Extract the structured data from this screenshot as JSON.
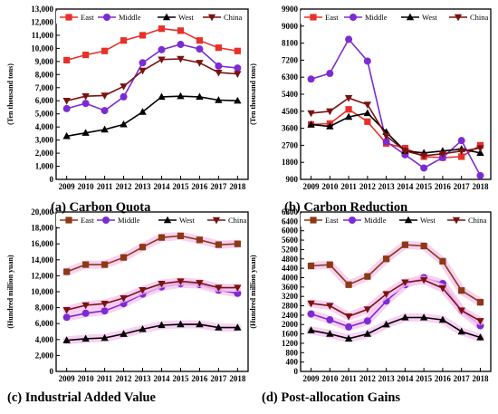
{
  "chart_data": [
    {
      "type": "line",
      "caption": "(a) Carbon Quota",
      "ylabel": "(Ten thousand tons)",
      "xlabel": "",
      "x": [
        "2009",
        "2010",
        "2011",
        "2012",
        "2013",
        "2014",
        "2015",
        "2016",
        "2017",
        "2018"
      ],
      "ylim": [
        0,
        13000
      ],
      "yticks": [
        "0",
        "1,000",
        "2,000",
        "3,000",
        "4,000",
        "5,000",
        "6,000",
        "7,000",
        "8,000",
        "9,000",
        "10,000",
        "11,000",
        "12,000",
        "13,000"
      ],
      "grid": false,
      "legend": "top",
      "series": [
        {
          "name": "East",
          "values": [
            9100,
            9500,
            9800,
            10600,
            11000,
            11500,
            11350,
            10600,
            10050,
            9800
          ]
        },
        {
          "name": "Middle",
          "values": [
            5400,
            5800,
            5250,
            6300,
            8900,
            9900,
            10300,
            9950,
            8650,
            8500
          ]
        },
        {
          "name": "West",
          "values": [
            3300,
            3550,
            3800,
            4200,
            5150,
            6300,
            6350,
            6300,
            6050,
            6000
          ]
        },
        {
          "name": "China",
          "values": [
            6000,
            6350,
            6400,
            7100,
            8300,
            9150,
            9200,
            8900,
            8150,
            8050
          ]
        }
      ]
    },
    {
      "type": "line",
      "caption": "(b) Carbon Reduction",
      "ylabel": "(Ten thousand tons)",
      "xlabel": "",
      "x": [
        "2009",
        "2010",
        "2011",
        "2012",
        "2013",
        "2014",
        "2015",
        "2016",
        "2017",
        "2018"
      ],
      "ylim": [
        900,
        9900
      ],
      "yticks": [
        "900",
        "1800",
        "2700",
        "3600",
        "4500",
        "5400",
        "6300",
        "7200",
        "8100",
        "9000",
        "9900"
      ],
      "grid": false,
      "legend": "top",
      "series": [
        {
          "name": "East",
          "values": [
            3800,
            3850,
            4600,
            3950,
            2800,
            2550,
            2100,
            2050,
            2100,
            2700
          ]
        },
        {
          "name": "Middle",
          "values": [
            6200,
            6500,
            8300,
            7150,
            2900,
            2200,
            1500,
            2050,
            2950,
            1100
          ]
        },
        {
          "name": "West",
          "values": [
            3800,
            3700,
            4200,
            4400,
            3400,
            2400,
            2300,
            2400,
            2500,
            2300
          ]
        },
        {
          "name": "China",
          "values": [
            4400,
            4500,
            5200,
            4850,
            3200,
            2400,
            2150,
            2250,
            2400,
            2550
          ]
        }
      ]
    },
    {
      "type": "line",
      "caption": "(c) Industrial Added Value",
      "ylabel": "(Hundred million yuan)",
      "xlabel": "",
      "x": [
        "2009",
        "2010",
        "2011",
        "2012",
        "2013",
        "2014",
        "2015",
        "2016",
        "2017",
        "2018"
      ],
      "ylim": [
        0,
        20000
      ],
      "yticks": [
        "0",
        "2,000",
        "4,000",
        "6,000",
        "8,000",
        "10,000",
        "12,000",
        "14,000",
        "16,000",
        "18,000",
        "20,000"
      ],
      "grid": false,
      "legend": "top",
      "series": [
        {
          "name": "East",
          "values": [
            12500,
            13400,
            13400,
            14300,
            15600,
            16800,
            17000,
            16500,
            15900,
            16000
          ]
        },
        {
          "name": "Middle",
          "values": [
            6800,
            7300,
            7600,
            8500,
            9700,
            10600,
            11000,
            10900,
            10200,
            9800
          ]
        },
        {
          "name": "West",
          "values": [
            3900,
            4100,
            4200,
            4700,
            5300,
            5800,
            5900,
            5900,
            5500,
            5500
          ]
        },
        {
          "name": "China",
          "values": [
            7700,
            8300,
            8500,
            9200,
            10200,
            11000,
            11300,
            11100,
            10500,
            10500
          ]
        }
      ]
    },
    {
      "type": "line",
      "caption": "(d) Post-allocation Gains",
      "ylabel": "(Hundred million yuan)",
      "xlabel": "",
      "x": [
        "2009",
        "2010",
        "2011",
        "2012",
        "2013",
        "2014",
        "2015",
        "2016",
        "2017",
        "2018"
      ],
      "ylim": [
        0,
        6800
      ],
      "yticks": [
        "0",
        "400",
        "800",
        "1200",
        "1600",
        "2000",
        "2400",
        "2800",
        "3200",
        "3600",
        "4000",
        "4400",
        "4800",
        "5200",
        "5600",
        "6000",
        "6400",
        "6800"
      ],
      "grid": false,
      "legend": "top",
      "series": [
        {
          "name": "East",
          "values": [
            4500,
            4550,
            3700,
            4050,
            4800,
            5400,
            5350,
            4700,
            3450,
            2950
          ]
        },
        {
          "name": "Middle",
          "values": [
            2450,
            2200,
            1900,
            2150,
            3000,
            3700,
            4000,
            3750,
            2600,
            1950
          ]
        },
        {
          "name": "West",
          "values": [
            1750,
            1600,
            1400,
            1600,
            2000,
            2300,
            2300,
            2200,
            1700,
            1450
          ]
        },
        {
          "name": "China",
          "values": [
            2900,
            2800,
            2350,
            2650,
            3300,
            3800,
            3900,
            3550,
            2600,
            2150
          ]
        }
      ]
    }
  ],
  "colors": {
    "East": "#e8302a",
    "Middle": "#7c2bd4",
    "West": "#000000",
    "China": "#7a1212",
    "EastC": "#8b3a15"
  },
  "markers": {
    "East": "square",
    "Middle": "circle",
    "West": "triangle-up",
    "China": "triangle-down"
  }
}
